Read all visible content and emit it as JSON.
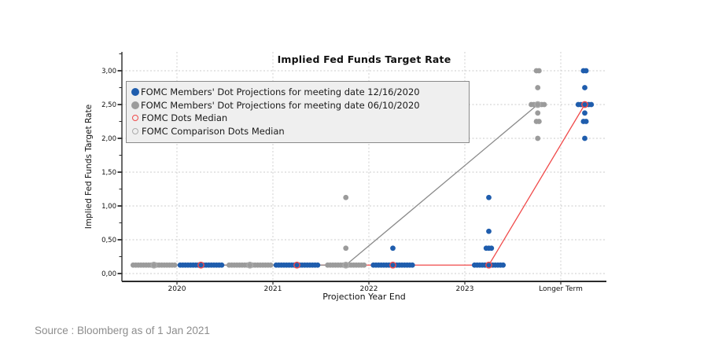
{
  "source_note": "Source : Bloomberg as of 1 Jan 2021",
  "chart_data": {
    "type": "scatter",
    "title": "Implied Fed Funds Target Rate",
    "xlabel": "Projection Year End",
    "ylabel": "Implied Fed Funds Target Rate",
    "x_categories": [
      "2020",
      "2021",
      "2022",
      "2023",
      "Longer Term"
    ],
    "y_ticks": [
      {
        "value": 0.0,
        "label": "0,00"
      },
      {
        "value": 0.5,
        "label": "0,50"
      },
      {
        "value": 1.0,
        "label": "1,00"
      },
      {
        "value": 1.5,
        "label": "1,50"
      },
      {
        "value": 2.0,
        "label": "2,00"
      },
      {
        "value": 2.5,
        "label": "2,50"
      },
      {
        "value": 3.0,
        "label": "3,00"
      }
    ],
    "y_minor_step": 0.25,
    "ylim": [
      -0.12,
      3.28
    ],
    "grid": true,
    "legend_position": "upper-left",
    "colors": {
      "current_dots": "#1f5dad",
      "comparison_dots": "#9b9b9b",
      "median": "#f04b4b",
      "comparison_median": "#ababab",
      "comparison_line": "#8a8a8a",
      "gridline": "#cbcbcb",
      "axis": "#2b2b2b",
      "legend_bg": "#efefef"
    },
    "legend": [
      {
        "marker": "dot-filled",
        "color": "#1f5dad",
        "label": "FOMC Members' Dot Projections for meeting date 12/16/2020"
      },
      {
        "marker": "dot-filled",
        "color": "#9b9b9b",
        "label": "FOMC Members' Dot Projections for meeting date 06/10/2020"
      },
      {
        "marker": "circle-open",
        "color": "#f04b4b",
        "label": "FOMC Dots Median"
      },
      {
        "marker": "circle-open",
        "color": "#ababab",
        "label": "FOMC Comparison Dots Median"
      }
    ],
    "series": [
      {
        "name": "FOMC Members' Dot Projections for meeting date 12/16/2020",
        "color": "#1f5dad",
        "offset": 0.25,
        "dots": [
          {
            "x": "2020",
            "rate": 0.125,
            "count": 17
          },
          {
            "x": "2021",
            "rate": 0.125,
            "count": 17
          },
          {
            "x": "2022",
            "rate": 0.125,
            "count": 16
          },
          {
            "x": "2022",
            "rate": 0.375,
            "count": 1
          },
          {
            "x": "2023",
            "rate": 0.125,
            "count": 12
          },
          {
            "x": "2023",
            "rate": 0.375,
            "count": 3
          },
          {
            "x": "2023",
            "rate": 0.625,
            "count": 1
          },
          {
            "x": "2023",
            "rate": 1.125,
            "count": 1
          },
          {
            "x": "Longer Term",
            "rate": 2.0,
            "count": 1
          },
          {
            "x": "Longer Term",
            "rate": 2.25,
            "count": 2
          },
          {
            "x": "Longer Term",
            "rate": 2.375,
            "count": 1
          },
          {
            "x": "Longer Term",
            "rate": 2.5,
            "count": 6
          },
          {
            "x": "Longer Term",
            "rate": 2.75,
            "count": 1
          },
          {
            "x": "Longer Term",
            "rate": 3.0,
            "count": 2
          }
        ]
      },
      {
        "name": "FOMC Members' Dot Projections for meeting date 06/10/2020",
        "color": "#9b9b9b",
        "offset": -0.24,
        "dots": [
          {
            "x": "2020",
            "rate": 0.125,
            "count": 17
          },
          {
            "x": "2021",
            "rate": 0.125,
            "count": 17
          },
          {
            "x": "2022",
            "rate": 0.125,
            "count": 15
          },
          {
            "x": "2022",
            "rate": 0.375,
            "count": 1
          },
          {
            "x": "2022",
            "rate": 1.125,
            "count": 1
          },
          {
            "x": "Longer Term",
            "rate": 2.0,
            "count": 1
          },
          {
            "x": "Longer Term",
            "rate": 2.25,
            "count": 2
          },
          {
            "x": "Longer Term",
            "rate": 2.375,
            "count": 1
          },
          {
            "x": "Longer Term",
            "rate": 2.5,
            "count": 6
          },
          {
            "x": "Longer Term",
            "rate": 2.75,
            "count": 1
          },
          {
            "x": "Longer Term",
            "rate": 3.0,
            "count": 2
          }
        ]
      }
    ],
    "medians": [
      {
        "name": "FOMC Dots Median",
        "color": "#f04b4b",
        "offset": 0.25,
        "points": [
          {
            "x": "2020",
            "rate": 0.125
          },
          {
            "x": "2021",
            "rate": 0.125
          },
          {
            "x": "2022",
            "rate": 0.125
          },
          {
            "x": "2023",
            "rate": 0.125
          },
          {
            "x": "Longer Term",
            "rate": 2.5
          }
        ]
      },
      {
        "name": "FOMC Comparison Dots Median",
        "color": "#ababab",
        "line_color": "#8a8a8a",
        "offset": -0.24,
        "points": [
          {
            "x": "2020",
            "rate": 0.125
          },
          {
            "x": "2021",
            "rate": 0.125
          },
          {
            "x": "2022",
            "rate": 0.125
          },
          {
            "x": "Longer Term",
            "rate": 2.5
          }
        ]
      }
    ]
  }
}
